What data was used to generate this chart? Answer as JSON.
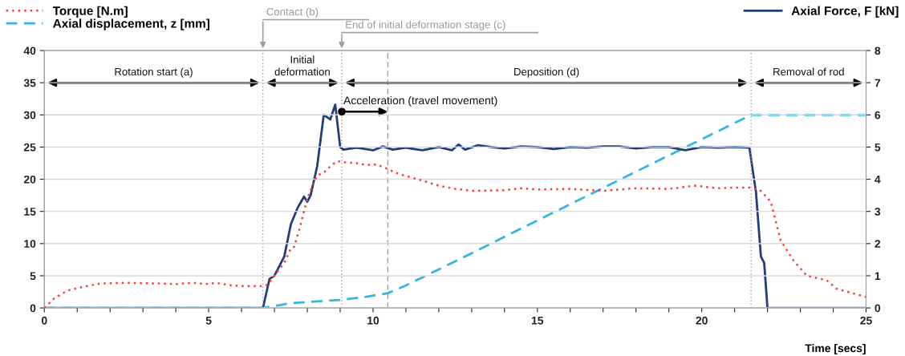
{
  "chart_data": {
    "type": "line",
    "xlabel": "Time [secs]",
    "xlim": [
      0,
      25
    ],
    "xticks": [
      0,
      {
        "value": 1,
        "label": null
      },
      {
        "value": 2,
        "label": null
      },
      {
        "value": 3,
        "label": null
      },
      {
        "value": 4,
        "label": null
      },
      5,
      {
        "value": 6,
        "label": null
      },
      {
        "value": 7,
        "label": null
      },
      {
        "value": 8,
        "label": null
      },
      {
        "value": 9,
        "label": null
      },
      10,
      {
        "value": 11,
        "label": null
      },
      {
        "value": 12,
        "label": null
      },
      {
        "value": 13,
        "label": null
      },
      {
        "value": 14,
        "label": null
      },
      15,
      {
        "value": 16,
        "label": null
      },
      {
        "value": 17,
        "label": null
      },
      {
        "value": 18,
        "label": null
      },
      {
        "value": 19,
        "label": null
      },
      20,
      {
        "value": 21,
        "label": null
      },
      {
        "value": 22,
        "label": null
      },
      {
        "value": 23,
        "label": null
      },
      {
        "value": 24,
        "label": null
      },
      25
    ],
    "ylim": [
      0,
      40
    ],
    "yticks": [
      0,
      5,
      10,
      15,
      20,
      25,
      30,
      35,
      40
    ],
    "y2lim": [
      0,
      8
    ],
    "y2ticks": [
      0,
      1,
      2,
      3,
      4,
      5,
      6,
      7,
      8
    ],
    "grid": "y",
    "legend": "top",
    "series": [
      {
        "name": "Torque [N.m]",
        "color": "#ff3b3b",
        "line_style": "dotted",
        "x": [
          0,
          0.3,
          0.7,
          1.2,
          1.7,
          2.5,
          3.5,
          4.0,
          4.5,
          5.0,
          5.2,
          5.7,
          6.0,
          6.6,
          6.8,
          7.0,
          7.3,
          7.5,
          7.6,
          7.8,
          8.0,
          8.2,
          8.3,
          8.5,
          8.7,
          8.9,
          9.2,
          9.5,
          9.8,
          10.1,
          10.4,
          10.7,
          11.0,
          11.5,
          12.0,
          12.5,
          13.0,
          14.0,
          14.5,
          15.0,
          16.0,
          17.0,
          18.0,
          19.0,
          19.8,
          20.5,
          21.0,
          21.5,
          21.8,
          22.1,
          22.4,
          22.8,
          23.2,
          23.8,
          24.1,
          25.0
        ],
        "values": [
          0,
          1.5,
          2.7,
          3.3,
          3.8,
          3.9,
          3.8,
          3.7,
          3.9,
          3.7,
          3.9,
          3.5,
          3.4,
          3.4,
          3.6,
          5,
          7,
          9.3,
          9.5,
          13,
          17,
          19.5,
          20.6,
          21,
          22,
          22.8,
          22.6,
          22.5,
          22.2,
          22.3,
          21.7,
          21,
          20.5,
          19.8,
          19,
          18.5,
          18.2,
          18.3,
          18.6,
          18.4,
          18.5,
          18.2,
          18.6,
          18.5,
          19,
          18.6,
          18.7,
          18.7,
          18.2,
          16.5,
          10.5,
          7.3,
          5,
          4.3,
          3,
          1.7
        ]
      },
      {
        "name": "Axial displacement, z [mm]",
        "color": "#33b5e5",
        "line_style": "dashed",
        "axis": "y2",
        "x": [
          0,
          6.65,
          7.5,
          8.5,
          9.0,
          9.8,
          10.45,
          11.0,
          11.5,
          12.0,
          13.0,
          15.0,
          17.0,
          19.0,
          21.5,
          25.0
        ],
        "values": [
          0,
          0,
          0.15,
          0.22,
          0.25,
          0.35,
          0.46,
          0.7,
          0.95,
          1.2,
          1.7,
          2.72,
          3.73,
          4.74,
          6.0,
          6.0
        ]
      },
      {
        "name": "Axial Force, F [kN]",
        "color": "#1f3e7a",
        "line_style": "solid",
        "axis": "y2",
        "x": [
          0,
          6.65,
          6.85,
          7.0,
          7.3,
          7.5,
          7.7,
          7.9,
          8.0,
          8.1,
          8.3,
          8.5,
          8.7,
          8.85,
          9.0,
          9.1,
          9.5,
          10.0,
          10.3,
          10.6,
          11.0,
          11.5,
          12.0,
          12.4,
          12.6,
          12.8,
          13.2,
          13.6,
          14.0,
          14.5,
          15.0,
          15.5,
          16.0,
          16.5,
          17.0,
          17.5,
          18.0,
          18.5,
          19.0,
          19.5,
          20.0,
          20.5,
          21.0,
          21.45,
          21.65,
          21.8,
          21.9,
          22.0,
          25.0
        ],
        "values": [
          0,
          0,
          0.9,
          1.0,
          1.6,
          2.6,
          3.1,
          3.46,
          3.3,
          3.5,
          4.4,
          6.0,
          5.86,
          6.32,
          5.0,
          4.92,
          4.98,
          4.9,
          5.02,
          4.92,
          4.98,
          4.9,
          5.0,
          4.9,
          5.08,
          4.92,
          5.06,
          5.0,
          4.96,
          5.02,
          5.0,
          4.94,
          5.0,
          4.98,
          5.02,
          5.02,
          4.96,
          5.0,
          5.0,
          4.9,
          5.0,
          4.98,
          5.0,
          4.98,
          3.6,
          1.6,
          1.4,
          0,
          0
        ]
      }
    ],
    "ref_lines": [
      {
        "axis": "x",
        "value": 6.65,
        "label": "Contact (b)",
        "color": "#a0a0a0",
        "line_style": "dotted"
      },
      {
        "axis": "x",
        "value": 9.05,
        "label": "End of initial deformation stage (c)",
        "color": "#a0a0a0",
        "line_style": "dotted"
      },
      {
        "axis": "x",
        "value": 10.45,
        "color": "#a0a0a0",
        "line_style": "dashed"
      },
      {
        "axis": "x",
        "value": 21.5,
        "color": "#a0a0a0",
        "line_style": "dotted"
      }
    ],
    "annotations": [
      "Rotation start (a)",
      "Initial\ndeformation",
      "Deposition (d)",
      "Removal of rod",
      {
        "text": "Acceleration (travel movement)",
        "x": 9.05,
        "y": 30.5
      }
    ]
  }
}
